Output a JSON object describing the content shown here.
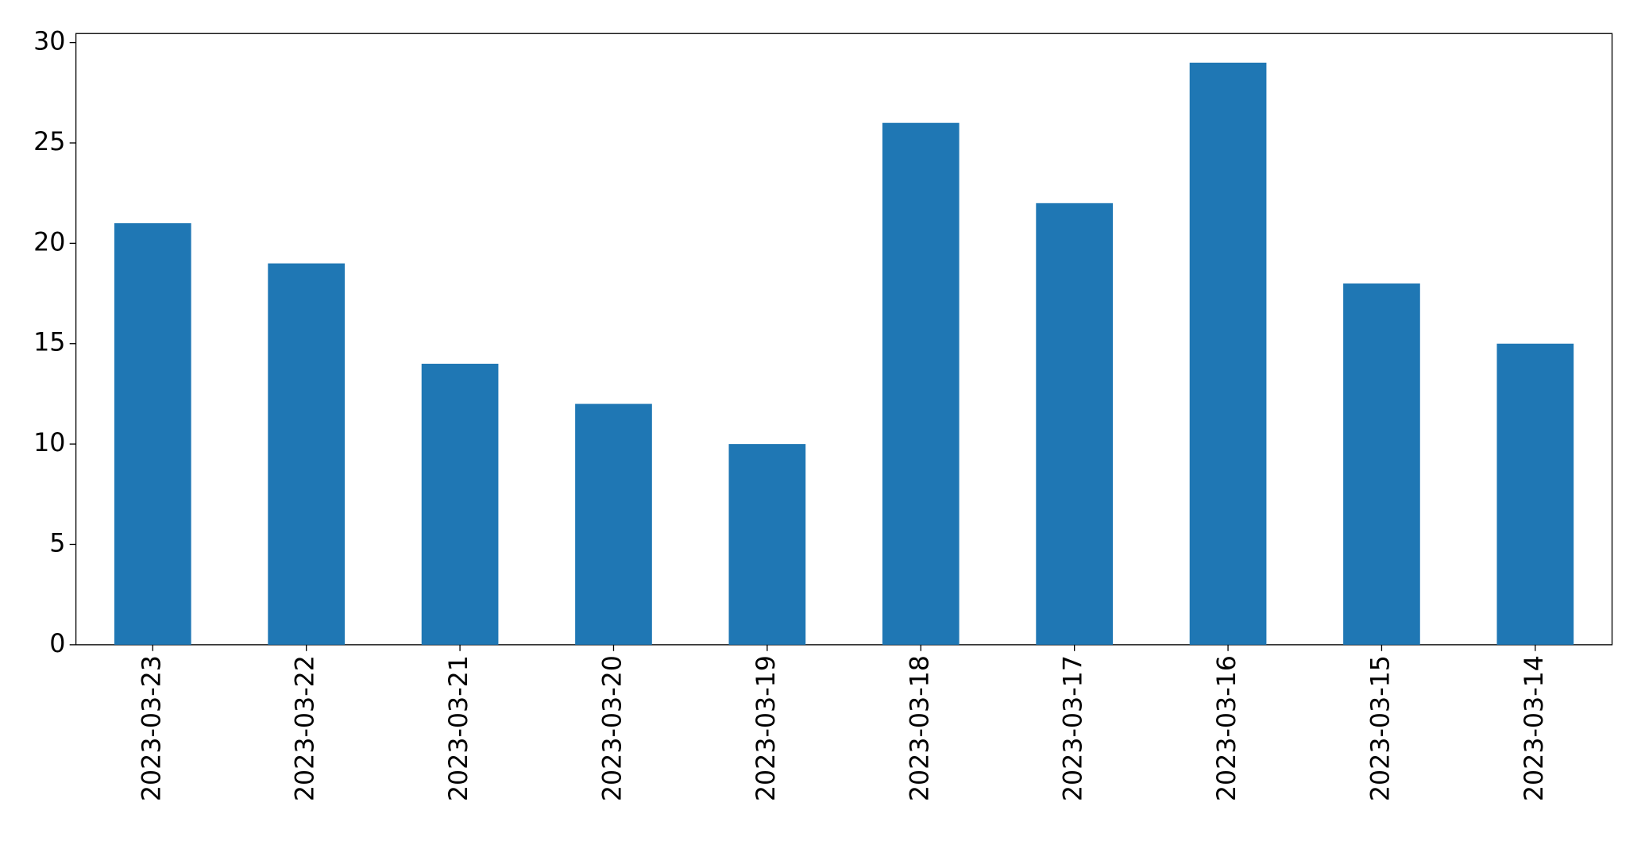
{
  "chart_data": {
    "type": "bar",
    "categories": [
      "2023-03-23",
      "2023-03-22",
      "2023-03-21",
      "2023-03-20",
      "2023-03-19",
      "2023-03-18",
      "2023-03-17",
      "2023-03-16",
      "2023-03-15",
      "2023-03-14"
    ],
    "values": [
      21,
      19,
      14,
      12,
      10,
      26,
      22,
      29,
      18,
      15
    ],
    "color": "#1f77b4",
    "ylim": [
      0,
      30.45
    ],
    "yticks": [
      0,
      5,
      10,
      15,
      20,
      25,
      30
    ],
    "grid": false
  }
}
